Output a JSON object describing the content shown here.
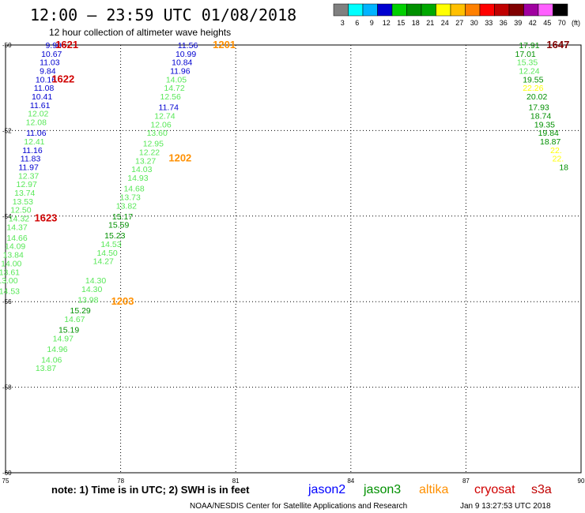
{
  "header": {
    "title": "12:00 – 23:59 UTC 01/08/2018",
    "subtitle": "12 hour collection of altimeter wave heights"
  },
  "colorbar": {
    "unit": "(ft)",
    "labels": [
      "3",
      "6",
      "9",
      "12",
      "15",
      "18",
      "21",
      "24",
      "27",
      "30",
      "33",
      "36",
      "39",
      "42",
      "45",
      "70"
    ],
    "colors": [
      "#808080",
      "#00ffff",
      "#00b4ff",
      "#0000d0",
      "#00d000",
      "#009000",
      "#00a800",
      "#ffff00",
      "#ffc000",
      "#ff8000",
      "#ff0000",
      "#c00000",
      "#800000",
      "#a000a0",
      "#ff60ff",
      "#000000"
    ]
  },
  "footer": {
    "note": "note: 1) Time is in UTC; 2) SWH is in feet",
    "legend": [
      {
        "name": "jason2",
        "color": "#0000ff"
      },
      {
        "name": "jason3",
        "color": "#009000"
      },
      {
        "name": "altika",
        "color": "#ff9000"
      },
      {
        "name": "cryosat",
        "color": "#d00000"
      },
      {
        "name": "s3a",
        "color": "#c00000"
      }
    ],
    "credit": "NOAA/NESDIS Center for Satellite Applications and Research",
    "timestamp": "Jan  9 13:27:53 UTC 2018"
  },
  "chart_data": {
    "type": "scatter",
    "xlim": [
      75,
      90
    ],
    "ylim": [
      -60,
      -50
    ],
    "x_ticks": [
      "75",
      "78",
      "81",
      "84",
      "87",
      "90"
    ],
    "y_ticks": [
      "-50",
      "-52",
      "-54",
      "-56",
      "-58",
      "-60"
    ],
    "grid": true,
    "points": [
      {
        "x": 76.25,
        "y": -50.0,
        "v": "9.90",
        "c": "#0000d0"
      },
      {
        "x": 76.2,
        "y": -50.2,
        "v": "10.67",
        "c": "#0000d0"
      },
      {
        "x": 76.15,
        "y": -50.4,
        "v": "11.03",
        "c": "#0000d0"
      },
      {
        "x": 76.1,
        "y": -50.6,
        "v": "9.84",
        "c": "#0000d0"
      },
      {
        "x": 76.05,
        "y": -50.8,
        "v": "10.16",
        "c": "#0000d0"
      },
      {
        "x": 76.0,
        "y": -51.0,
        "v": "11.08",
        "c": "#0000d0"
      },
      {
        "x": 75.95,
        "y": -51.2,
        "v": "10.41",
        "c": "#0000d0"
      },
      {
        "x": 75.9,
        "y": -51.4,
        "v": "11.61",
        "c": "#0000d0"
      },
      {
        "x": 75.85,
        "y": -51.6,
        "v": "12.02",
        "c": "#58e858"
      },
      {
        "x": 75.8,
        "y": -51.8,
        "v": "12.08",
        "c": "#58e858"
      },
      {
        "x": 75.8,
        "y": -52.05,
        "v": "11.06",
        "c": "#0000d0"
      },
      {
        "x": 75.75,
        "y": -52.25,
        "v": "12.41",
        "c": "#58e858"
      },
      {
        "x": 75.7,
        "y": -52.45,
        "v": "11.16",
        "c": "#0000d0"
      },
      {
        "x": 75.65,
        "y": -52.65,
        "v": "11.83",
        "c": "#0000d0"
      },
      {
        "x": 75.6,
        "y": -52.85,
        "v": "11.97",
        "c": "#0000d0"
      },
      {
        "x": 75.6,
        "y": -53.05,
        "v": "12.37",
        "c": "#58e858"
      },
      {
        "x": 75.55,
        "y": -53.25,
        "v": "12.97",
        "c": "#58e858"
      },
      {
        "x": 75.5,
        "y": -53.45,
        "v": "13.74",
        "c": "#58e858"
      },
      {
        "x": 75.45,
        "y": -53.65,
        "v": "13.53",
        "c": "#58e858"
      },
      {
        "x": 75.4,
        "y": -53.85,
        "v": "12.50",
        "c": "#58e858"
      },
      {
        "x": 75.35,
        "y": -54.05,
        "v": "14.32",
        "c": "#58e858"
      },
      {
        "x": 75.3,
        "y": -54.25,
        "v": "14.37",
        "c": "#58e858"
      },
      {
        "x": 75.3,
        "y": -54.5,
        "v": "14.66",
        "c": "#58e858"
      },
      {
        "x": 75.25,
        "y": -54.7,
        "v": "14.09",
        "c": "#58e858"
      },
      {
        "x": 75.2,
        "y": -54.9,
        "v": "13.84",
        "c": "#58e858"
      },
      {
        "x": 75.15,
        "y": -55.1,
        "v": "14.00",
        "c": "#58e858"
      },
      {
        "x": 75.1,
        "y": -55.3,
        "v": "13.61",
        "c": "#58e858"
      },
      {
        "x": 75.05,
        "y": -55.5,
        "v": "13.00",
        "c": "#58e858"
      },
      {
        "x": 75.1,
        "y": -55.75,
        "v": "14.53",
        "c": "#58e858"
      },
      {
        "x": 76.6,
        "y": -50.0,
        "v": "1621",
        "c": "#d00000",
        "big": true
      },
      {
        "x": 76.5,
        "y": -50.8,
        "v": "1622",
        "c": "#d00000",
        "big": true
      },
      {
        "x": 76.05,
        "y": -54.05,
        "v": "1623",
        "c": "#d00000",
        "big": true
      },
      {
        "x": 79.75,
        "y": -50.0,
        "v": "11.56",
        "c": "#0000d0"
      },
      {
        "x": 79.7,
        "y": -50.2,
        "v": "10.99",
        "c": "#0000d0"
      },
      {
        "x": 79.6,
        "y": -50.4,
        "v": "10.84",
        "c": "#0000d0"
      },
      {
        "x": 79.55,
        "y": -50.6,
        "v": "11.96",
        "c": "#0000d0"
      },
      {
        "x": 79.45,
        "y": -50.8,
        "v": "14.05",
        "c": "#58e858"
      },
      {
        "x": 79.4,
        "y": -51.0,
        "v": "14.72",
        "c": "#58e858"
      },
      {
        "x": 79.3,
        "y": -51.2,
        "v": "12.56",
        "c": "#58e858"
      },
      {
        "x": 79.25,
        "y": -51.45,
        "v": "11.74",
        "c": "#0000d0"
      },
      {
        "x": 79.15,
        "y": -51.65,
        "v": "12.74",
        "c": "#58e858"
      },
      {
        "x": 79.05,
        "y": -51.85,
        "v": "12.06",
        "c": "#58e858"
      },
      {
        "x": 78.95,
        "y": -52.05,
        "v": "13.60",
        "c": "#58e858"
      },
      {
        "x": 78.85,
        "y": -52.3,
        "v": "12.95",
        "c": "#58e858"
      },
      {
        "x": 78.75,
        "y": -52.5,
        "v": "12.22",
        "c": "#58e858"
      },
      {
        "x": 78.65,
        "y": -52.7,
        "v": "13.27",
        "c": "#58e858"
      },
      {
        "x": 78.55,
        "y": -52.9,
        "v": "14.03",
        "c": "#58e858"
      },
      {
        "x": 78.45,
        "y": -53.1,
        "v": "14.93",
        "c": "#58e858"
      },
      {
        "x": 78.35,
        "y": -53.35,
        "v": "14.68",
        "c": "#58e858"
      },
      {
        "x": 78.25,
        "y": -53.55,
        "v": "13.73",
        "c": "#58e858"
      },
      {
        "x": 78.15,
        "y": -53.75,
        "v": "13.82",
        "c": "#58e858"
      },
      {
        "x": 78.05,
        "y": -54.0,
        "v": "15.17",
        "c": "#009000"
      },
      {
        "x": 77.95,
        "y": -54.2,
        "v": "15.59",
        "c": "#009000"
      },
      {
        "x": 77.85,
        "y": -54.45,
        "v": "15.23",
        "c": "#009000"
      },
      {
        "x": 77.75,
        "y": -54.65,
        "v": "14.53",
        "c": "#58e858"
      },
      {
        "x": 77.65,
        "y": -54.85,
        "v": "14.50",
        "c": "#58e858"
      },
      {
        "x": 77.55,
        "y": -55.05,
        "v": "14.27",
        "c": "#58e858"
      },
      {
        "x": 77.35,
        "y": -55.5,
        "v": "14.30",
        "c": "#58e858"
      },
      {
        "x": 77.25,
        "y": -55.7,
        "v": "14.30",
        "c": "#58e858"
      },
      {
        "x": 77.15,
        "y": -55.95,
        "v": "13.98",
        "c": "#58e858"
      },
      {
        "x": 76.95,
        "y": -56.2,
        "v": "15.29",
        "c": "#009000"
      },
      {
        "x": 76.8,
        "y": -56.4,
        "v": "14.67",
        "c": "#58e858"
      },
      {
        "x": 76.65,
        "y": -56.65,
        "v": "15.19",
        "c": "#009000"
      },
      {
        "x": 76.5,
        "y": -56.85,
        "v": "14.97",
        "c": "#58e858"
      },
      {
        "x": 76.35,
        "y": -57.1,
        "v": "14.96",
        "c": "#58e858"
      },
      {
        "x": 76.2,
        "y": -57.35,
        "v": "14.06",
        "c": "#58e858"
      },
      {
        "x": 76.05,
        "y": -57.55,
        "v": "13.87",
        "c": "#58e858"
      },
      {
        "x": 80.7,
        "y": -50.0,
        "v": "1201",
        "c": "#ff9000",
        "big": true
      },
      {
        "x": 79.55,
        "y": -52.65,
        "v": "1202",
        "c": "#ff9000",
        "big": true
      },
      {
        "x": 78.05,
        "y": -56.0,
        "v": "1203",
        "c": "#ff9000",
        "big": true
      },
      {
        "x": 88.65,
        "y": -50.0,
        "v": "17.91",
        "c": "#009000"
      },
      {
        "x": 88.55,
        "y": -50.2,
        "v": "17.01",
        "c": "#009000"
      },
      {
        "x": 88.6,
        "y": -50.4,
        "v": "15.35",
        "c": "#58e858"
      },
      {
        "x": 88.65,
        "y": -50.6,
        "v": "12.24",
        "c": "#58e858"
      },
      {
        "x": 88.75,
        "y": -50.8,
        "v": "19.55",
        "c": "#009000"
      },
      {
        "x": 88.75,
        "y": -51.0,
        "v": "22.26",
        "c": "#ffff00"
      },
      {
        "x": 88.85,
        "y": -51.2,
        "v": "20.02",
        "c": "#009000"
      },
      {
        "x": 88.9,
        "y": -51.45,
        "v": "17.93",
        "c": "#009000"
      },
      {
        "x": 88.95,
        "y": -51.65,
        "v": "18.74",
        "c": "#009000"
      },
      {
        "x": 89.05,
        "y": -51.85,
        "v": "19.35",
        "c": "#009000"
      },
      {
        "x": 89.15,
        "y": -52.05,
        "v": "19.84",
        "c": "#009000"
      },
      {
        "x": 89.2,
        "y": -52.25,
        "v": "18.87",
        "c": "#009000"
      },
      {
        "x": 89.35,
        "y": -52.45,
        "v": "22.",
        "c": "#ffff00"
      },
      {
        "x": 89.4,
        "y": -52.65,
        "v": "22.",
        "c": "#ffff00"
      },
      {
        "x": 89.55,
        "y": -52.85,
        "v": "18",
        "c": "#009000"
      },
      {
        "x": 89.4,
        "y": -50.0,
        "v": "1647",
        "c": "#800000",
        "big": true
      }
    ]
  }
}
